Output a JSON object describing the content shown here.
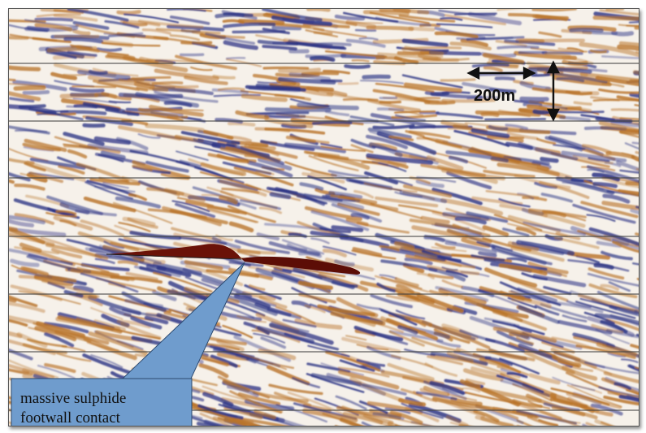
{
  "figure": {
    "scale_bar_label": "200m",
    "callout": {
      "line1": "massive sulphide",
      "line2": "footwall contact"
    },
    "colors": {
      "positive": "#b9742a",
      "negative": "#2b3384",
      "highlight": "#6a1208",
      "callout_fill": "#6f9ccd",
      "gridline": "#444444"
    }
  }
}
